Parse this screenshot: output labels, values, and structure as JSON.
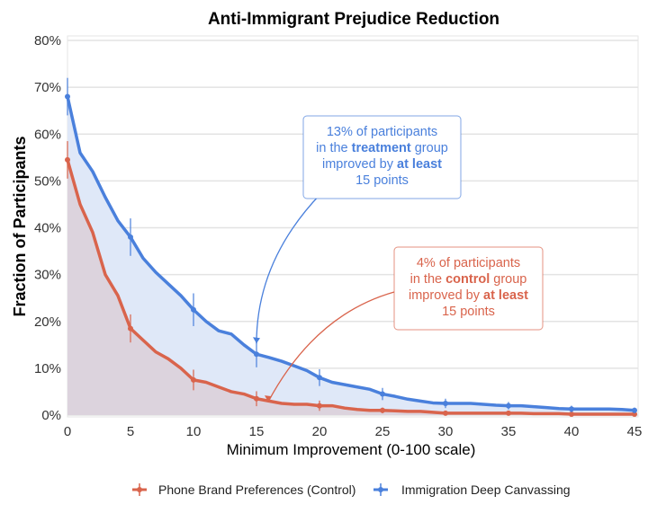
{
  "chart_data": {
    "type": "area",
    "title": "Anti-Immigrant Prejudice Reduction",
    "xlabel": "Minimum Improvement (0-100 scale)",
    "ylabel": "Fraction of Participants",
    "xlim": [
      0,
      45
    ],
    "ylim": [
      0,
      80
    ],
    "x_ticks": [
      "0",
      "5",
      "10",
      "15",
      "20",
      "25",
      "30",
      "35",
      "40",
      "45"
    ],
    "y_ticks": [
      "0%",
      "10%",
      "20%",
      "30%",
      "40%",
      "50%",
      "60%",
      "70%",
      "80%"
    ],
    "grid": true,
    "legend_position": "bottom",
    "x": [
      0,
      1,
      2,
      3,
      4,
      5,
      6,
      7,
      8,
      9,
      10,
      11,
      12,
      13,
      14,
      15,
      16,
      17,
      18,
      19,
      20,
      21,
      22,
      23,
      24,
      25,
      26,
      27,
      28,
      29,
      30,
      31,
      32,
      33,
      34,
      35,
      36,
      37,
      38,
      39,
      40,
      41,
      42,
      43,
      44,
      45
    ],
    "series": [
      {
        "name": "Phone Brand Preferences (Control)",
        "color": "#d9644c",
        "fill": "#dcd0d9",
        "values": [
          54.5,
          45,
          39,
          30,
          25.5,
          18.5,
          16,
          13.5,
          12,
          10,
          7.5,
          7,
          6,
          5,
          4.5,
          3.5,
          3,
          2.5,
          2.3,
          2.3,
          2,
          2,
          1.5,
          1.2,
          1,
          1,
          0.9,
          0.8,
          0.8,
          0.6,
          0.4,
          0.4,
          0.4,
          0.4,
          0.4,
          0.4,
          0.4,
          0.3,
          0.3,
          0.3,
          0.2,
          0.2,
          0.2,
          0.2,
          0.2,
          0.2
        ],
        "error_x": [
          0,
          5,
          10,
          15,
          20,
          25,
          30,
          35,
          40,
          45
        ],
        "error_half": [
          4,
          3,
          2.2,
          1.6,
          1.1,
          0.6,
          0.4,
          0.4,
          0.3,
          0.3
        ]
      },
      {
        "name": "Immigration Deep Canvassing",
        "color": "#4a80dc",
        "fill": "#dfe8f8",
        "values": [
          68,
          56,
          52,
          46.5,
          41.5,
          38,
          33.5,
          30.5,
          28,
          25.5,
          22.5,
          20,
          18,
          17.3,
          15,
          13,
          12.3,
          11.5,
          10.5,
          9.5,
          8,
          7,
          6.5,
          6,
          5.5,
          4.5,
          4,
          3.4,
          3,
          2.6,
          2.5,
          2.5,
          2.5,
          2.3,
          2.1,
          2,
          2,
          1.8,
          1.6,
          1.4,
          1.3,
          1.3,
          1.3,
          1.3,
          1.2,
          1
        ],
        "error_x": [
          0,
          5,
          10,
          15,
          20,
          25,
          30,
          35,
          40,
          45
        ],
        "error_half": [
          4,
          4,
          3.5,
          2.8,
          1.8,
          1.3,
          1,
          0.8,
          0.7,
          0.6
        ]
      }
    ],
    "annotations": [
      {
        "series": "Immigration Deep Canvassing",
        "color": "#4a80dc",
        "lines": [
          [
            {
              "text": "13% of participants",
              "bold": false
            }
          ],
          [
            {
              "text": "in the ",
              "bold": false
            },
            {
              "text": "treatment",
              "bold": true
            },
            {
              "text": " group",
              "bold": false
            }
          ],
          [
            {
              "text": "improved by ",
              "bold": false
            },
            {
              "text": "at least",
              "bold": true
            }
          ],
          [
            {
              "text": "15 points",
              "bold": false
            }
          ]
        ],
        "points_to": [
          15,
          13
        ]
      },
      {
        "series": "Phone Brand Preferences (Control)",
        "color": "#d9644c",
        "lines": [
          [
            {
              "text": "4% of participants",
              "bold": false
            }
          ],
          [
            {
              "text": "in the ",
              "bold": false
            },
            {
              "text": "control",
              "bold": true
            },
            {
              "text": " group",
              "bold": false
            }
          ],
          [
            {
              "text": "improved by ",
              "bold": false
            },
            {
              "text": "at least",
              "bold": true
            }
          ],
          [
            {
              "text": "15 points",
              "bold": false
            }
          ]
        ],
        "points_to": [
          15,
          4
        ]
      }
    ]
  }
}
